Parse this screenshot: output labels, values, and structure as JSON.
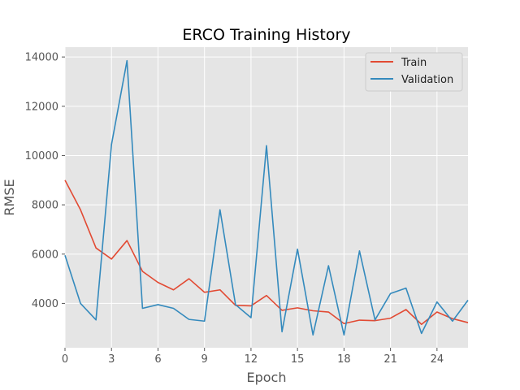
{
  "chart_data": {
    "type": "line",
    "title": "ERCO Training History",
    "xlabel": "Epoch",
    "ylabel": "RMSE",
    "xlim": [
      0,
      26
    ],
    "ylim": [
      2200,
      14400
    ],
    "xticks": [
      0,
      3,
      6,
      9,
      12,
      15,
      18,
      21,
      24
    ],
    "yticks": [
      4000,
      6000,
      8000,
      10000,
      12000,
      14000
    ],
    "grid": true,
    "legend_position": "top-right",
    "x": [
      0,
      1,
      2,
      3,
      4,
      5,
      6,
      7,
      8,
      9,
      10,
      11,
      12,
      13,
      14,
      15,
      16,
      17,
      18,
      19,
      20,
      21,
      22,
      23,
      24,
      25,
      26
    ],
    "series": [
      {
        "name": "Train",
        "color": "#E24A33",
        "values": [
          9000,
          7800,
          6250,
          5800,
          6550,
          5300,
          4850,
          4550,
          5000,
          4450,
          4550,
          3920,
          3900,
          4320,
          3720,
          3820,
          3700,
          3650,
          3180,
          3320,
          3300,
          3400,
          3750,
          3150,
          3650,
          3380,
          3220
        ]
      },
      {
        "name": "Validation",
        "color": "#348ABD",
        "values": [
          5950,
          4000,
          3330,
          10450,
          13850,
          3800,
          3950,
          3800,
          3350,
          3280,
          7800,
          3950,
          3420,
          10400,
          2850,
          6200,
          2720,
          5530,
          2720,
          6130,
          3330,
          4400,
          4620,
          2780,
          4060,
          3280,
          4130
        ]
      }
    ]
  }
}
